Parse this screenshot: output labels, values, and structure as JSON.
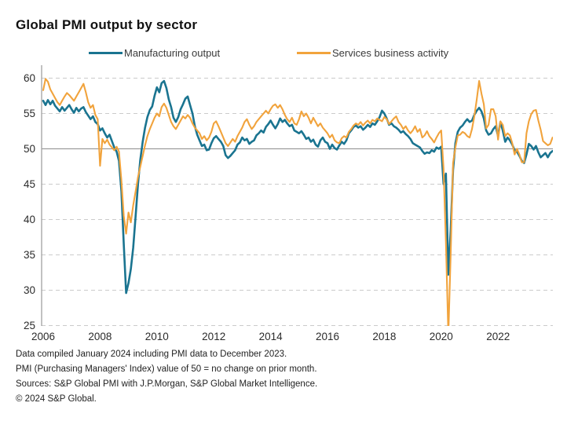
{
  "title": "Global PMI output by sector",
  "legend": [
    {
      "label": "Manufacturing output",
      "color": "#1A7490"
    },
    {
      "label": "Services business activity",
      "color": "#F1A33C"
    }
  ],
  "footer": {
    "line1": "Data compiled January 2024 including PMI data to December 2023.",
    "line2": "PMI (Purchasing Managers' Index) value of 50 = no change on prior month.",
    "line3": "Sources: S&P Global PMI with J.P.Morgan, S&P Global Market Intelligence.",
    "line4": "© 2024 S&P Global."
  },
  "chart_data": {
    "type": "line",
    "title": "Global PMI output by sector",
    "frequency": "monthly",
    "x_start": "2006-01",
    "x_end": "2023-12",
    "ylim": [
      25,
      61.5
    ],
    "y_ticks": [
      60,
      55,
      50,
      45,
      40,
      35,
      30,
      25
    ],
    "x_tick_years": [
      2006,
      2008,
      2010,
      2012,
      2014,
      2016,
      2018,
      2020,
      2022
    ],
    "reference_line": 50,
    "grid": "horizontal-dashed",
    "legend_position": "top",
    "colors": {
      "grid": "#CBCBCB",
      "reference": "#8C8C8C",
      "axis": "#A0A0A0",
      "tick_text": "#2B2B2B"
    },
    "series": [
      {
        "name": "Manufacturing output",
        "color": "#1A7490",
        "values": [
          56.8,
          56.2,
          56.9,
          56.3,
          56.8,
          56.1,
          55.7,
          55.3,
          55.9,
          55.4,
          55.8,
          56.2,
          55.6,
          55.1,
          55.8,
          55.3,
          55.7,
          55.9,
          55.2,
          54.7,
          54.2,
          54.6,
          53.8,
          53.5,
          52.6,
          52.9,
          52.2,
          51.6,
          52.0,
          51.1,
          50.2,
          49.6,
          48.3,
          44.0,
          36.5,
          29.6,
          31.0,
          33.0,
          36.0,
          40.5,
          45.0,
          48.5,
          51.0,
          53.0,
          54.5,
          55.5,
          56.0,
          57.5,
          58.7,
          58.0,
          59.3,
          59.6,
          58.6,
          57.0,
          55.9,
          54.4,
          53.8,
          54.5,
          55.6,
          56.3,
          57.1,
          57.4,
          56.2,
          55.0,
          53.2,
          52.0,
          51.2,
          50.4,
          50.6,
          49.8,
          49.9,
          50.8,
          51.5,
          51.8,
          51.4,
          51.0,
          50.4,
          49.1,
          48.7,
          49.0,
          49.4,
          49.8,
          50.6,
          50.9,
          51.6,
          51.2,
          51.4,
          50.7,
          51.0,
          51.2,
          51.9,
          52.2,
          52.6,
          52.3,
          53.1,
          53.5,
          54.0,
          53.4,
          52.9,
          53.5,
          54.3,
          53.8,
          54.1,
          53.6,
          53.2,
          53.4,
          52.6,
          52.4,
          52.2,
          52.5,
          52.0,
          51.4,
          51.6,
          51.0,
          51.3,
          50.6,
          50.3,
          51.2,
          51.6,
          51.0,
          50.8,
          50.0,
          50.6,
          50.1,
          49.9,
          50.5,
          51.0,
          50.7,
          51.2,
          52.2,
          52.6,
          53.1,
          53.3,
          53.0,
          53.2,
          52.7,
          53.0,
          53.4,
          53.1,
          53.6,
          53.4,
          53.9,
          54.5,
          55.4,
          55.0,
          54.3,
          53.4,
          53.6,
          53.2,
          53.0,
          52.7,
          52.3,
          52.5,
          52.1,
          51.8,
          51.4,
          50.8,
          50.6,
          50.4,
          50.2,
          49.7,
          49.3,
          49.5,
          49.4,
          49.8,
          49.6,
          50.2,
          50.0,
          50.3,
          45.0,
          46.5,
          32.2,
          38.5,
          47.0,
          50.8,
          52.4,
          53.0,
          53.3,
          53.8,
          54.2,
          53.8,
          54.0,
          54.8,
          55.4,
          55.8,
          55.3,
          54.3,
          52.6,
          52.0,
          52.2,
          52.8,
          53.2,
          51.8,
          53.8,
          52.6,
          51.0,
          51.6,
          51.2,
          50.6,
          49.8,
          49.6,
          49.0,
          48.3,
          48.0,
          49.2,
          50.7,
          50.4,
          49.9,
          50.4,
          49.5,
          48.8,
          49.1,
          49.4,
          48.8,
          49.4,
          49.7
        ]
      },
      {
        "name": "Services business activity",
        "color": "#F1A33C",
        "values": [
          58.3,
          59.9,
          59.5,
          58.4,
          57.8,
          57.2,
          56.6,
          56.2,
          56.8,
          57.4,
          57.9,
          57.6,
          57.2,
          56.8,
          57.4,
          58.0,
          58.6,
          59.2,
          58.0,
          56.6,
          55.8,
          56.2,
          54.8,
          54.2,
          47.6,
          51.4,
          50.8,
          51.3,
          50.6,
          50.2,
          49.8,
          50.3,
          49.6,
          45.5,
          40.5,
          38.0,
          41.0,
          39.6,
          42.0,
          44.0,
          46.0,
          47.5,
          49.0,
          50.5,
          51.8,
          52.8,
          53.6,
          54.4,
          55.0,
          54.6,
          55.9,
          56.4,
          55.8,
          54.8,
          53.8,
          53.2,
          52.8,
          53.4,
          54.0,
          54.6,
          54.3,
          54.8,
          54.4,
          53.6,
          53.0,
          52.6,
          52.2,
          51.4,
          51.8,
          51.2,
          51.6,
          52.4,
          53.6,
          53.9,
          53.2,
          52.4,
          51.6,
          50.8,
          50.4,
          50.9,
          51.4,
          51.0,
          51.8,
          52.4,
          53.0,
          53.8,
          54.2,
          53.4,
          52.8,
          53.2,
          53.8,
          54.2,
          54.6,
          55.0,
          55.4,
          55.0,
          55.6,
          56.1,
          56.3,
          55.8,
          56.2,
          55.6,
          54.8,
          54.2,
          53.8,
          54.4,
          53.6,
          53.4,
          54.2,
          55.3,
          54.6,
          55.0,
          54.4,
          53.6,
          54.4,
          53.8,
          53.2,
          53.6,
          53.0,
          52.6,
          52.2,
          51.6,
          52.0,
          51.2,
          50.9,
          50.8,
          51.5,
          51.8,
          51.6,
          52.4,
          52.8,
          53.3,
          53.6,
          53.4,
          53.8,
          53.3,
          53.7,
          54.0,
          53.6,
          54.1,
          53.9,
          54.3,
          54.1,
          53.9,
          54.5,
          54.2,
          53.5,
          53.9,
          54.3,
          54.6,
          53.8,
          53.4,
          52.8,
          53.2,
          52.6,
          52.2,
          52.6,
          53.2,
          52.4,
          52.8,
          51.6,
          51.9,
          52.5,
          51.8,
          51.4,
          50.9,
          51.6,
          52.2,
          52.6,
          47.2,
          36.8,
          23.7,
          35.2,
          48.0,
          50.2,
          51.9,
          52.0,
          52.4,
          52.2,
          51.8,
          51.6,
          52.8,
          54.6,
          57.0,
          59.6,
          57.8,
          56.3,
          52.9,
          53.4,
          55.6,
          55.6,
          54.6,
          51.3,
          53.9,
          53.4,
          51.8,
          52.2,
          51.9,
          50.8,
          49.2,
          50.0,
          49.2,
          48.1,
          48.1,
          52.2,
          53.9,
          54.9,
          55.4,
          55.5,
          54.0,
          52.7,
          51.1,
          50.8,
          50.5,
          50.7,
          51.6
        ]
      }
    ]
  }
}
